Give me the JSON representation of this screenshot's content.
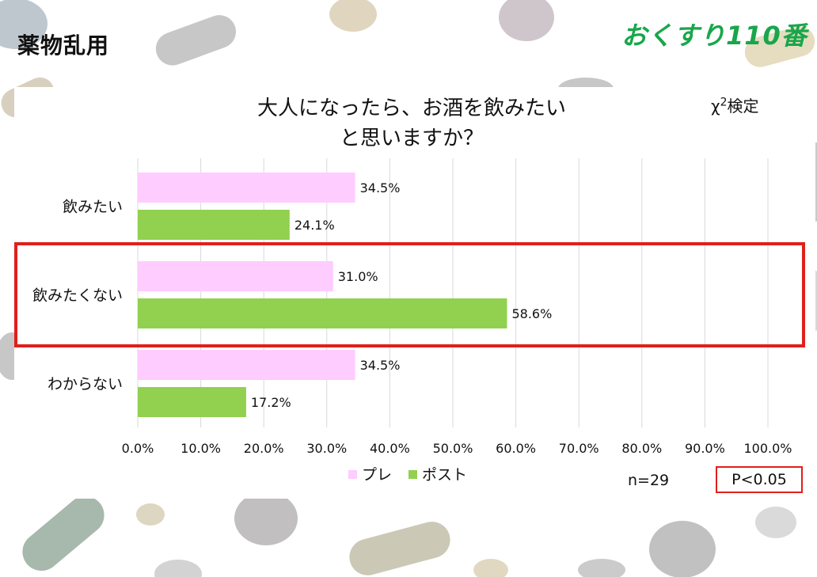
{
  "header": {
    "title": "薬物乱用",
    "brand": "おくすり110番"
  },
  "test": {
    "label": "χ",
    "sup": "2",
    "suffix": "検定"
  },
  "stats": {
    "n": "n=29",
    "p": "P<0.05"
  },
  "colors": {
    "pre": "#ffccff",
    "post": "#92d050",
    "highlight": "#e0201a",
    "grid": "#d9d9d9"
  },
  "chart_data": {
    "type": "bar",
    "orientation": "horizontal",
    "title_lines": [
      "大人になったら、お酒を飲みたい",
      "と思いますか？"
    ],
    "categories": [
      "飲みたい",
      "飲みたくない",
      "わからない"
    ],
    "series": [
      {
        "name": "プレ",
        "values": [
          34.5,
          31.0,
          34.5
        ],
        "labels": [
          "34.5%",
          "31.0%",
          "34.5%"
        ]
      },
      {
        "name": "ポスト",
        "values": [
          24.1,
          58.6,
          17.2
        ],
        "labels": [
          "24.1%",
          "58.6%",
          "17.2%"
        ]
      }
    ],
    "xlim": [
      0,
      100
    ],
    "x_ticks": [
      "0.0%",
      "10.0%",
      "20.0%",
      "30.0%",
      "40.0%",
      "50.0%",
      "60.0%",
      "70.0%",
      "80.0%",
      "90.0%",
      "100.0%"
    ],
    "highlighted_category": "飲みたくない",
    "grid": true,
    "legend": "bottom"
  }
}
